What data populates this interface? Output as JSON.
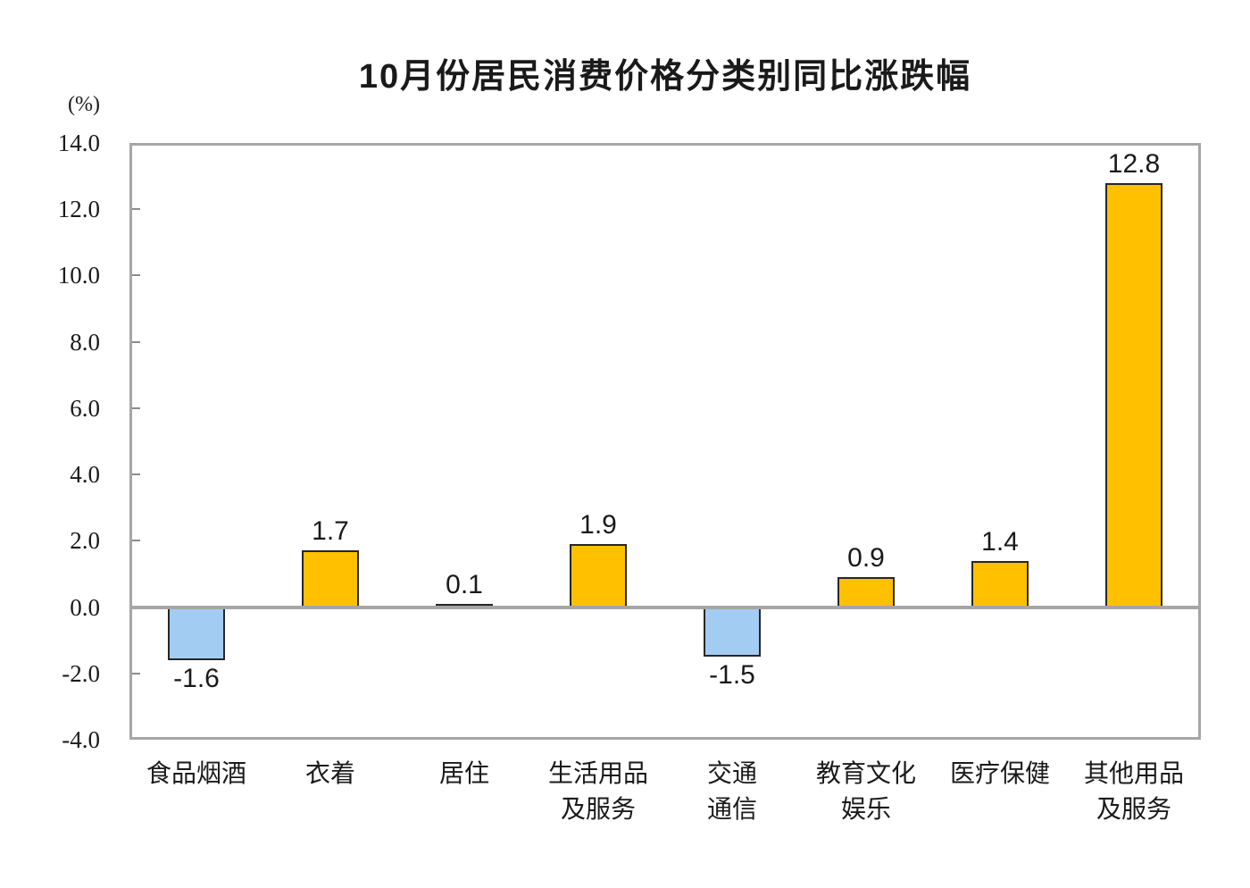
{
  "chart_data": {
    "type": "bar",
    "title": "10月份居民消费价格分类别同比涨跌幅",
    "unit_label": "(%)",
    "categories": [
      "食品烟酒",
      "衣着",
      "居住",
      "生活用品\n及服务",
      "交通\n通信",
      "教育文化\n娱乐",
      "医疗保健",
      "其他用品\n及服务"
    ],
    "values": [
      -1.6,
      1.7,
      0.1,
      1.9,
      -1.5,
      0.9,
      1.4,
      12.8
    ],
    "value_labels": [
      "-1.6",
      "1.7",
      "0.1",
      "1.9",
      "-1.5",
      "0.9",
      "1.4",
      "12.8"
    ],
    "ylim": [
      -4.0,
      14.0
    ],
    "ytick_step": 2.0,
    "yticks": [
      {
        "value": 14.0,
        "label": "14.0"
      },
      {
        "value": 12.0,
        "label": "12.0"
      },
      {
        "value": 10.0,
        "label": "10.0"
      },
      {
        "value": 8.0,
        "label": "8.0"
      },
      {
        "value": 6.0,
        "label": "6.0"
      },
      {
        "value": 4.0,
        "label": "4.0"
      },
      {
        "value": 2.0,
        "label": "2.0"
      },
      {
        "value": 0.0,
        "label": "0.0"
      },
      {
        "value": -2.0,
        "label": "-2.0"
      },
      {
        "value": -4.0,
        "label": "-4.0"
      }
    ],
    "colors": {
      "positive_bar": "#FFC000",
      "negative_bar": "#A3CCF3",
      "bar_border": "#262626",
      "axis_border": "#A6A6A6",
      "tick": "#8C8C8C",
      "text": "#1A1A1A",
      "background": "#FFFFFF"
    },
    "grid": false,
    "legend": false,
    "xlabel": "",
    "ylabel": "(%)"
  }
}
